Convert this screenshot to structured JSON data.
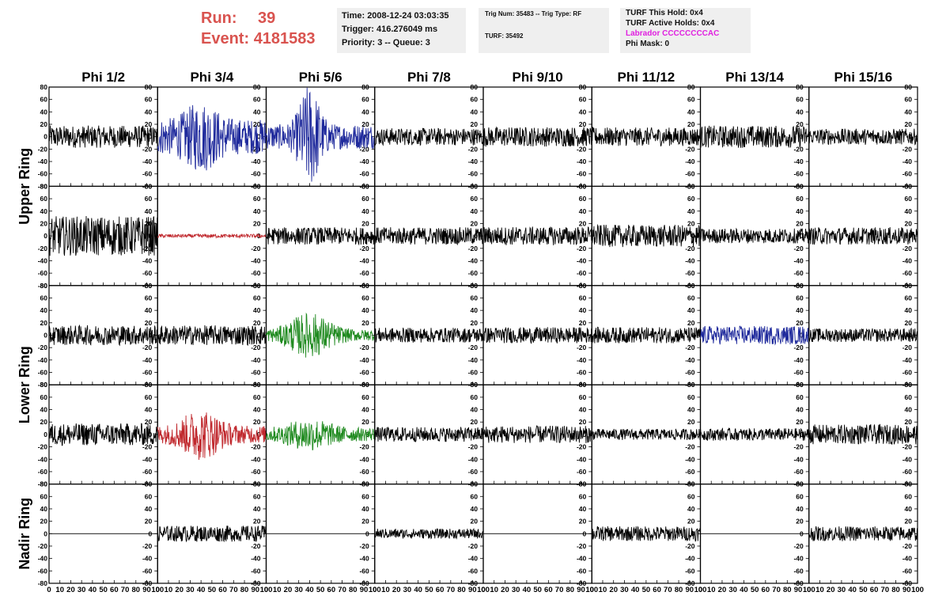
{
  "header": {
    "run_label": "Run:",
    "run_value": "39",
    "event_label": "Event:",
    "event_value": "4181583",
    "time": "Time: 2008-12-24 03:03:35",
    "trigger": "Trigger: 416.276049 ms",
    "priority": "Priority: 3 -- Queue: 3",
    "trig_num": "Trig Num: 35483 -- Trig Type: RF",
    "turf": "TURF: 35492",
    "turf_this_hold": "TURF This Hold: 0x4",
    "turf_active_holds": "TURF Active Holds: 0x4",
    "labrador": "Labrador CCCCCCCCAC",
    "phi_mask": "Phi Mask: 0"
  },
  "colors": {
    "header_red": "#d9534f",
    "labrador_magenta": "#e020e0",
    "trace_black": "#000000",
    "trace_blue": "#1f2a9c",
    "trace_red": "#c0282d",
    "trace_green": "#1f8a1f"
  },
  "chart_data": {
    "type": "line",
    "columns": [
      "Phi 1/2",
      "Phi 3/4",
      "Phi 5/6",
      "Phi 7/8",
      "Phi 9/10",
      "Phi 11/12",
      "Phi 13/14",
      "Phi 15/16"
    ],
    "rows": [
      "Upper Ring",
      "Upper Ring",
      "Lower Ring",
      "Lower Ring",
      "Nadir Ring"
    ],
    "row_labels": [
      {
        "text": "Upper Ring",
        "rows": [
          0,
          1
        ]
      },
      {
        "text": "Lower Ring",
        "rows": [
          2,
          3
        ]
      },
      {
        "text": "Nadir Ring",
        "rows": [
          4,
          4
        ]
      }
    ],
    "xlim": [
      0,
      100
    ],
    "ylim": [
      -80,
      80
    ],
    "x_ticks": [
      0,
      10,
      20,
      30,
      40,
      50,
      60,
      70,
      80,
      90,
      100
    ],
    "y_ticks": [
      -80,
      -60,
      -40,
      -20,
      0,
      20,
      40,
      60,
      80
    ],
    "traces": [
      [
        {
          "c": "black",
          "a": 18
        },
        {
          "c": "blue",
          "a": 28,
          "b": 30,
          "s": 8
        },
        {
          "c": "blue",
          "a": 20,
          "b": 65,
          "s": 5
        },
        {
          "c": "black",
          "a": 14
        },
        {
          "c": "black",
          "a": 16
        },
        {
          "c": "black",
          "a": 15
        },
        {
          "c": "black",
          "a": 18
        },
        {
          "c": "black",
          "a": 13
        }
      ],
      [
        {
          "c": "black",
          "a": 32
        },
        {
          "c": "red",
          "a": 3
        },
        {
          "c": "black",
          "a": 14
        },
        {
          "c": "black",
          "a": 14
        },
        {
          "c": "black",
          "a": 15
        },
        {
          "c": "black",
          "a": 18
        },
        {
          "c": "black",
          "a": 12
        },
        {
          "c": "black",
          "a": 14
        }
      ],
      [
        {
          "c": "black",
          "a": 16
        },
        {
          "c": "black",
          "a": 16
        },
        {
          "c": "green",
          "a": 9,
          "b": 28,
          "s": 10
        },
        {
          "c": "black",
          "a": 12
        },
        {
          "c": "black",
          "a": 13
        },
        {
          "c": "black",
          "a": 13
        },
        {
          "c": "blue",
          "a": 15
        },
        {
          "c": "black",
          "a": 11
        }
      ],
      [
        {
          "c": "black",
          "a": 18
        },
        {
          "c": "red",
          "a": 14,
          "b": 28,
          "s": 9
        },
        {
          "c": "green",
          "a": 11,
          "b": 16,
          "s": 10
        },
        {
          "c": "black",
          "a": 12
        },
        {
          "c": "black",
          "a": 14
        },
        {
          "c": "black",
          "a": 9
        },
        {
          "c": "black",
          "a": 10
        },
        {
          "c": "black",
          "a": 16
        }
      ],
      [
        {
          "c": "flat",
          "a": 0
        },
        {
          "c": "black",
          "a": 13
        },
        {
          "c": "flat",
          "a": 0
        },
        {
          "c": "black",
          "a": 8
        },
        {
          "c": "flat",
          "a": 0
        },
        {
          "c": "black",
          "a": 12
        },
        {
          "c": "flat",
          "a": 0
        },
        {
          "c": "black",
          "a": 12
        }
      ]
    ]
  }
}
